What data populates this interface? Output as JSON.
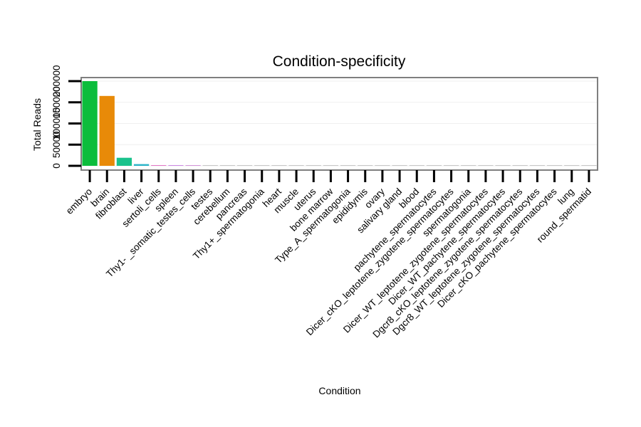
{
  "chart_data": {
    "type": "bar",
    "title": "Condition-specificity",
    "xlabel": "Condition",
    "ylabel": "Total Reads",
    "ylim": [
      0,
      210000
    ],
    "yticks": [
      0,
      50000,
      100000,
      150000,
      200000
    ],
    "ytick_labels": [
      "0",
      "50000",
      "100000",
      "150000",
      "200000"
    ],
    "categories": [
      "embryo",
      "brain",
      "fibroblast",
      "liver",
      "sertoli_cells",
      "spleen",
      "Thy1- _somatic_testes_cells",
      "testes",
      "cerebellum",
      "pancreas",
      "Thy1+_spermatogonia",
      "heart",
      "muscle",
      "uterus",
      "bone marrow",
      "Type_A_spermatogonia",
      "epididymis",
      "ovary",
      "salivary gland",
      "blood",
      "pachytene_spermatocytes",
      "Dicer_cKO_leptotene_zygotene_spermatocytes",
      "spermatogonia",
      "Dicer_WT_leptotene_zygotene_spermatocytes",
      "Dicer_WT_pachytene_spermatocytes",
      "Dgcr8_cKO_leptotene_zygotene_spermatocytes",
      "Dgcr8_WT_leptotene_zygotene_spermatocytes",
      "Dicer_cKO_pachytene_spermatocytes",
      "lung",
      "round_spermatid"
    ],
    "values": [
      200000,
      165000,
      19000,
      4000,
      1500,
      1200,
      1000,
      300,
      200,
      150,
      100,
      100,
      80,
      80,
      60,
      60,
      50,
      50,
      40,
      40,
      30,
      30,
      20,
      20,
      20,
      10,
      10,
      10,
      10,
      10
    ],
    "colors": [
      "#0cbd3c",
      "#e88a08",
      "#1ac28c",
      "#2bb4c8",
      "#e066c0",
      "#c06adc",
      "#c87ad0",
      "#b8b8b8",
      "#b8b8b8",
      "#b8b8b8",
      "#b8b8b8",
      "#b8b8b8",
      "#b8b8b8",
      "#b8b8b8",
      "#b8b8b8",
      "#b8b8b8",
      "#b8b8b8",
      "#b8b8b8",
      "#b8b8b8",
      "#b8b8b8",
      "#b8b8b8",
      "#b8b8b8",
      "#b8b8b8",
      "#b8b8b8",
      "#b8b8b8",
      "#b8b8b8",
      "#b8b8b8",
      "#b8b8b8",
      "#b8b8b8",
      "#b8b8b8"
    ],
    "grid": true,
    "legend": "none"
  }
}
